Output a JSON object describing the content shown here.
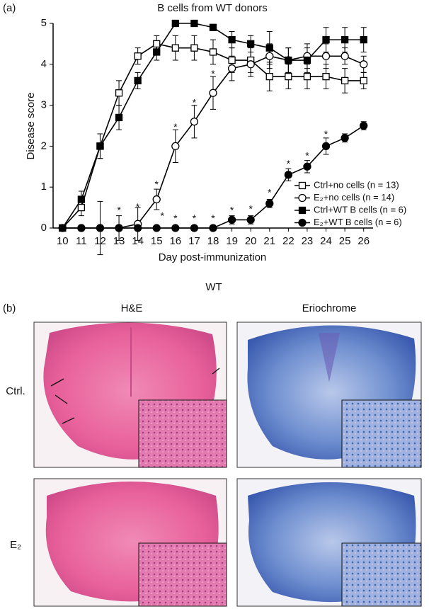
{
  "panel_a_label": "(a)",
  "chart_data": {
    "type": "line",
    "title": "B cells from WT donors",
    "x_label": "Day post-immunization",
    "y_label": "Disease score",
    "x": [
      10,
      11,
      12,
      13,
      14,
      15,
      16,
      17,
      18,
      19,
      20,
      21,
      22,
      23,
      24,
      25,
      26
    ],
    "xlim": [
      9.5,
      26.5
    ],
    "xticks": [
      10,
      11,
      12,
      13,
      14,
      15,
      16,
      17,
      18,
      19,
      20,
      21,
      22,
      23,
      24,
      25,
      26
    ],
    "ylim": [
      0,
      5
    ],
    "yticks": [
      0,
      1,
      2,
      3,
      4,
      5
    ],
    "legend": "lower right",
    "series": [
      {
        "name": "Ctrl+no cells (n = 13)",
        "color": "#000000",
        "marker": "square",
        "filled": false,
        "values": [
          0,
          0.5,
          2.0,
          3.3,
          4.2,
          4.5,
          4.4,
          4.4,
          4.3,
          4.1,
          4.1,
          3.7,
          3.7,
          3.7,
          3.7,
          3.6,
          3.6
        ],
        "errors": [
          0,
          0.2,
          0.3,
          0.3,
          0.2,
          0.2,
          0.3,
          0.3,
          0.3,
          0.3,
          0.3,
          0.35,
          0.3,
          0.3,
          0.3,
          0.3,
          0.2
        ]
      },
      {
        "name": "E₂+no cells (n = 14)",
        "color": "#000000",
        "marker": "circle",
        "filled": false,
        "values": [
          0,
          0,
          0,
          0,
          0.1,
          0.7,
          2.0,
          2.6,
          3.3,
          3.9,
          4.0,
          4.2,
          4.1,
          4.2,
          4.2,
          4.2,
          4.0
        ],
        "errors": [
          0,
          0,
          0.65,
          0.3,
          0.4,
          0.25,
          0.4,
          0.4,
          0.4,
          0.3,
          0.3,
          0.3,
          0.3,
          0.3,
          0.3,
          0.2,
          0.2
        ]
      },
      {
        "name": "Ctrl+WT B cells (n = 6)",
        "color": "#000000",
        "marker": "square",
        "filled": true,
        "values": [
          0,
          0.7,
          2.0,
          2.7,
          3.6,
          4.3,
          5.0,
          5.0,
          4.9,
          4.6,
          4.5,
          4.4,
          4.1,
          4.1,
          4.6,
          4.6,
          4.6
        ],
        "errors": [
          0,
          0.2,
          0.3,
          0.3,
          0.2,
          0.2,
          0,
          0,
          0,
          0.2,
          0.2,
          0.4,
          0.3,
          0.3,
          0.3,
          0.3,
          0.3
        ]
      },
      {
        "name": "E₂+WT B cells (n = 6)",
        "color": "#000000",
        "marker": "circle",
        "filled": true,
        "values": [
          0,
          0,
          0,
          0,
          0,
          0,
          0,
          0,
          0,
          0.2,
          0.2,
          0.6,
          1.3,
          1.5,
          2.0,
          2.2,
          2.5
        ],
        "errors": [
          0,
          0,
          0,
          0,
          0,
          0,
          0,
          0,
          0,
          0.1,
          0.1,
          0.1,
          0.15,
          0.15,
          0.2,
          0.1,
          0.1
        ]
      }
    ],
    "annotations": [
      {
        "x": 13,
        "y": 0.42,
        "text": "*"
      },
      {
        "x": 14,
        "y": 0.5,
        "text": "*"
      },
      {
        "x": 15,
        "y": 1.05,
        "text": "*"
      },
      {
        "x": 15.3,
        "y": 0.28,
        "text": "*"
      },
      {
        "x": 16,
        "y": 2.45,
        "text": "*"
      },
      {
        "x": 16,
        "y": 0.22,
        "text": "*"
      },
      {
        "x": 17,
        "y": 3.05,
        "text": "*"
      },
      {
        "x": 17,
        "y": 0.22,
        "text": "*"
      },
      {
        "x": 18,
        "y": 3.75,
        "text": "*"
      },
      {
        "x": 18,
        "y": 0.22,
        "text": "*"
      },
      {
        "x": 19,
        "y": 0.42,
        "text": "*"
      },
      {
        "x": 20,
        "y": 0.45,
        "text": "*"
      },
      {
        "x": 21,
        "y": 0.85,
        "text": "*"
      },
      {
        "x": 22,
        "y": 1.55,
        "text": "*"
      },
      {
        "x": 23,
        "y": 1.75,
        "text": "*"
      },
      {
        "x": 24,
        "y": 2.28,
        "text": "*"
      }
    ]
  },
  "panel_b": {
    "label": "(b)",
    "group": "WT",
    "columns": [
      "H&E",
      "Eriochrome"
    ],
    "rows": [
      "Ctrl.",
      "E₂"
    ]
  }
}
